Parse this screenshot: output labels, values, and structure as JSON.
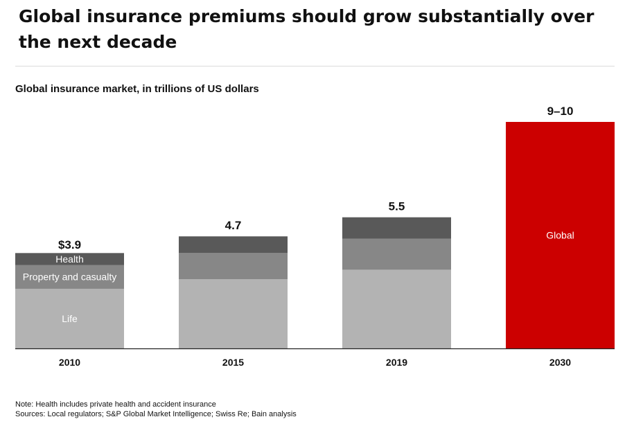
{
  "headline": "Global insurance premiums should grow substantially over the next decade",
  "chart_data": {
    "type": "bar",
    "stacked": true,
    "title": "Global insurance market, in trillions of US dollars",
    "categories": [
      "2010",
      "2015",
      "2019",
      "2030"
    ],
    "totals": [
      3.9,
      4.7,
      5.5,
      9.5
    ],
    "total_labels": [
      "$3.9",
      "4.7",
      "5.5",
      "9–10"
    ],
    "series": [
      {
        "name": "Life",
        "color": "#b3b3b3",
        "values": [
          2.5,
          2.9,
          3.3,
          null
        ]
      },
      {
        "name": "Property and casualty",
        "color": "#878787",
        "values": [
          1.0,
          1.1,
          1.3,
          null
        ]
      },
      {
        "name": "Health",
        "color": "#595959",
        "values": [
          0.5,
          0.7,
          0.9,
          null
        ]
      },
      {
        "name": "Global",
        "color": "#cc0000",
        "values": [
          null,
          null,
          null,
          9.5
        ]
      }
    ],
    "in_bar_labels": {
      "0": [
        "Life",
        "Property and casualty",
        "Health"
      ],
      "3": [
        "Global"
      ]
    },
    "grid": false,
    "legend": "none"
  },
  "notes": {
    "note": "Note: Health includes private health and accident insurance",
    "sources": "Sources: Local regulators; S&P Global Market Intelligence; Swiss Re; Bain analysis"
  }
}
